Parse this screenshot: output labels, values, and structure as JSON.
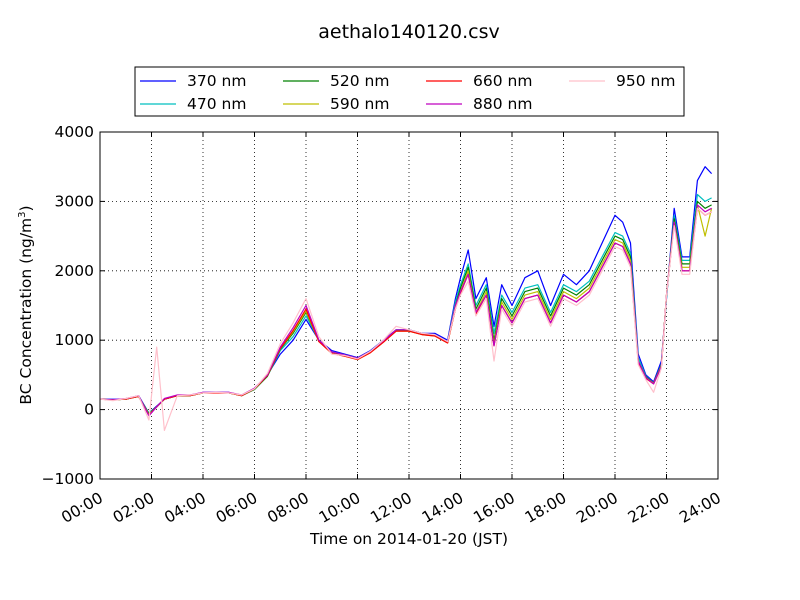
{
  "chart_data": {
    "type": "line",
    "title": "aethalo140120.csv",
    "xlabel": "Time on 2014-01-20 (JST)",
    "ylabel_main": "BC Concentration (ng/m",
    "ylabel_sup": "3",
    "ylabel_end": ")",
    "xlim": [
      "00:00",
      "24:00"
    ],
    "ylim": [
      -1000,
      4000
    ],
    "grid": true,
    "grid_style": "dotted",
    "legend_position": "top-center",
    "x_ticks": [
      "00:00",
      "02:00",
      "04:00",
      "06:00",
      "08:00",
      "10:00",
      "12:00",
      "14:00",
      "16:00",
      "18:00",
      "20:00",
      "22:00",
      "24:00"
    ],
    "y_ticks": [
      "4000",
      "3000",
      "2000",
      "1000",
      "0",
      "−1000"
    ],
    "x_hours": [
      0,
      0.5,
      1,
      1.5,
      1.9,
      2.2,
      2.5,
      3,
      3.5,
      4,
      4.5,
      5,
      5.5,
      6,
      6.5,
      7,
      7.5,
      8,
      8.5,
      9,
      9.5,
      10,
      10.5,
      11,
      11.5,
      12,
      12.5,
      13,
      13.5,
      13.8,
      14,
      14.3,
      14.6,
      15,
      15.3,
      15.6,
      16,
      16.5,
      17,
      17.5,
      18,
      18.5,
      19,
      19.5,
      20,
      20.3,
      20.6,
      20.9,
      21.2,
      21.5,
      21.8,
      22,
      22.3,
      22.6,
      22.9,
      23.2,
      23.5,
      23.75
    ],
    "series": [
      {
        "name": "370 nm",
        "color": "#0000ff",
        "values": [
          150,
          150,
          150,
          200,
          -50,
          50,
          150,
          200,
          200,
          250,
          250,
          250,
          200,
          300,
          500,
          800,
          1000,
          1300,
          1000,
          850,
          800,
          750,
          850,
          1000,
          1150,
          1150,
          1100,
          1100,
          1000,
          1600,
          1900,
          2300,
          1600,
          1900,
          1200,
          1800,
          1500,
          1900,
          2000,
          1500,
          1950,
          1800,
          2000,
          2400,
          2800,
          2700,
          2400,
          800,
          500,
          400,
          700,
          1600,
          2900,
          2200,
          2200,
          3300,
          3500,
          3400
        ]
      },
      {
        "name": "470 nm",
        "color": "#00bfbf",
        "values": [
          150,
          140,
          150,
          190,
          -50,
          40,
          150,
          200,
          200,
          240,
          240,
          240,
          200,
          290,
          480,
          850,
          1050,
          1350,
          1000,
          830,
          790,
          740,
          840,
          990,
          1150,
          1150,
          1100,
          1080,
          980,
          1550,
          1800,
          2100,
          1500,
          1800,
          1100,
          1650,
          1400,
          1750,
          1800,
          1400,
          1800,
          1700,
          1850,
          2200,
          2550,
          2500,
          2250,
          750,
          480,
          380,
          650,
          1600,
          2800,
          2150,
          2150,
          3100,
          3000,
          3050
        ]
      },
      {
        "name": "520 nm",
        "color": "#008000",
        "values": [
          150,
          140,
          150,
          190,
          -60,
          40,
          150,
          200,
          200,
          240,
          240,
          240,
          200,
          290,
          480,
          870,
          1100,
          1400,
          990,
          820,
          780,
          730,
          830,
          980,
          1140,
          1140,
          1090,
          1070,
          970,
          1500,
          1750,
          2050,
          1450,
          1750,
          1000,
          1600,
          1350,
          1700,
          1750,
          1350,
          1750,
          1650,
          1800,
          2150,
          2500,
          2450,
          2200,
          700,
          470,
          380,
          640,
          1650,
          2750,
          2100,
          2100,
          3000,
          2900,
          2950
        ]
      },
      {
        "name": "590 nm",
        "color": "#bfbf00",
        "values": [
          150,
          140,
          150,
          190,
          -70,
          40,
          150,
          200,
          200,
          240,
          240,
          240,
          200,
          300,
          490,
          880,
          1120,
          1420,
          980,
          810,
          770,
          720,
          820,
          970,
          1130,
          1130,
          1080,
          1060,
          960,
          1450,
          1700,
          2000,
          1400,
          1700,
          950,
          1550,
          1300,
          1650,
          1700,
          1300,
          1700,
          1600,
          1750,
          2100,
          2450,
          2400,
          2150,
          700,
          460,
          380,
          630,
          1650,
          2700,
          2050,
          2050,
          2950,
          2500,
          2900
        ]
      },
      {
        "name": "660 nm",
        "color": "#ff0000",
        "values": [
          150,
          140,
          150,
          190,
          -80,
          40,
          150,
          200,
          200,
          240,
          240,
          240,
          200,
          300,
          490,
          880,
          1140,
          1450,
          980,
          810,
          770,
          720,
          820,
          970,
          1130,
          1130,
          1080,
          1060,
          960,
          1450,
          1680,
          1950,
          1380,
          1650,
          920,
          1500,
          1250,
          1600,
          1650,
          1250,
          1650,
          1550,
          1700,
          2050,
          2400,
          2350,
          2100,
          680,
          450,
          370,
          620,
          1650,
          2700,
          2000,
          2000,
          2900,
          2800,
          2850
        ]
      },
      {
        "name": "880 nm",
        "color": "#bf00bf",
        "values": [
          150,
          140,
          160,
          200,
          -90,
          40,
          160,
          210,
          210,
          250,
          250,
          250,
          210,
          310,
          500,
          900,
          1180,
          1500,
          1000,
          830,
          790,
          740,
          840,
          990,
          1150,
          1150,
          1100,
          1080,
          980,
          1500,
          1700,
          1950,
          1400,
          1650,
          920,
          1500,
          1250,
          1600,
          1650,
          1250,
          1650,
          1550,
          1700,
          2050,
          2400,
          2350,
          2100,
          700,
          460,
          370,
          620,
          1650,
          2700,
          2000,
          2000,
          2950,
          2850,
          2900
        ]
      },
      {
        "name": "950 nm",
        "color": "#ffc0cb",
        "values": [
          150,
          130,
          160,
          200,
          -150,
          900,
          -300,
          200,
          210,
          240,
          250,
          240,
          210,
          300,
          520,
          950,
          1250,
          1600,
          1050,
          800,
          780,
          730,
          840,
          1000,
          1200,
          1150,
          1100,
          1080,
          980,
          1450,
          1650,
          1850,
          1350,
          1600,
          700,
          1450,
          1200,
          1550,
          1600,
          1200,
          1600,
          1500,
          1650,
          2000,
          2350,
          2300,
          2050,
          650,
          430,
          250,
          600,
          1650,
          2650,
          1950,
          1950,
          2900,
          2800,
          2850
        ]
      }
    ]
  }
}
